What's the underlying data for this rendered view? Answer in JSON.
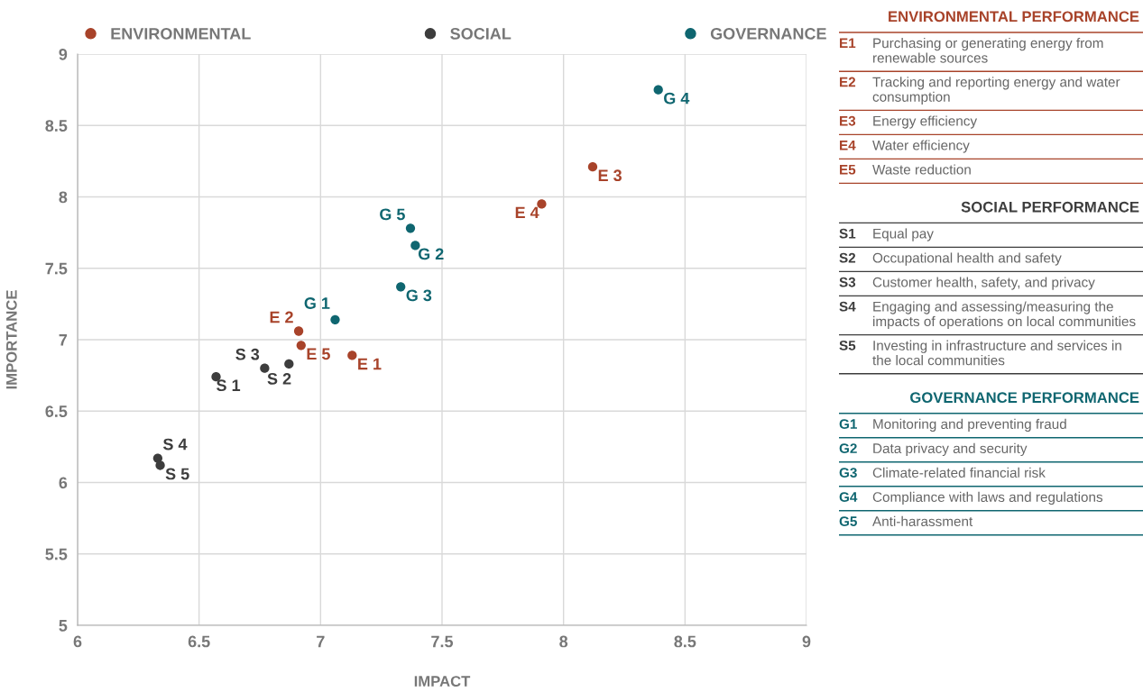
{
  "chart_data": [
    {
      "type": "scatter",
      "xlabel": "IMPACT",
      "ylabel": "IMPORTANCE",
      "xlim": [
        6,
        9
      ],
      "ylim": [
        5,
        9
      ],
      "xticks": [
        6,
        6.5,
        7,
        7.5,
        8,
        8.5,
        9
      ],
      "yticks": [
        5,
        5.5,
        6,
        6.5,
        7,
        7.5,
        8,
        8.5,
        9
      ],
      "grid": true,
      "legend": "top",
      "marker": "circle",
      "series": [
        {
          "name": "ENVIRONMENTAL",
          "color": "#a8432a",
          "x": [
            7.13,
            6.91,
            8.12,
            7.91,
            6.92
          ],
          "values": [
            6.89,
            7.06,
            8.21,
            7.95,
            6.96
          ]
        },
        {
          "name": "SOCIAL",
          "color": "#3d3d3d",
          "x": [
            6.57,
            6.87,
            6.77,
            6.33,
            6.34
          ],
          "values": [
            6.74,
            6.83,
            6.8,
            6.17,
            6.12
          ]
        },
        {
          "name": "GOVERNANCE",
          "color": "#0f6670",
          "x": [
            7.06,
            7.39,
            7.33,
            8.39,
            7.37
          ],
          "values": [
            7.14,
            7.66,
            7.37,
            8.75,
            7.78
          ]
        }
      ],
      "annotations": [
        {
          "text": "E 1",
          "x": 7.13,
          "y": 6.89
        },
        {
          "text": "E 2",
          "x": 6.91,
          "y": 7.06
        },
        {
          "text": "E 3",
          "x": 8.12,
          "y": 8.21
        },
        {
          "text": "E 4",
          "x": 7.91,
          "y": 7.95
        },
        {
          "text": "E 5",
          "x": 6.92,
          "y": 6.96
        },
        {
          "text": "S 1",
          "x": 6.57,
          "y": 6.74
        },
        {
          "text": "S 2",
          "x": 6.87,
          "y": 6.83
        },
        {
          "text": "S 3",
          "x": 6.77,
          "y": 6.8
        },
        {
          "text": "S 4",
          "x": 6.33,
          "y": 6.17
        },
        {
          "text": "S 5",
          "x": 6.34,
          "y": 6.12
        },
        {
          "text": "G 1",
          "x": 7.06,
          "y": 7.14
        },
        {
          "text": "G 2",
          "x": 7.39,
          "y": 7.66
        },
        {
          "text": "G 3",
          "x": 7.33,
          "y": 7.37
        },
        {
          "text": "G 4",
          "x": 8.39,
          "y": 8.75
        },
        {
          "text": "G 5",
          "x": 7.37,
          "y": 7.78
        }
      ]
    },
    {
      "type": "other",
      "title": "ENVIRONMENTAL PERFORMANCE",
      "color": "#a8432a",
      "categories": [
        "E1",
        "E2",
        "E3",
        "E4",
        "E5"
      ],
      "annotations": [
        "Purchasing or generating energy from renewable sources",
        "Tracking and reporting energy and water consumption",
        "Energy efficiency",
        "Water efficiency",
        "Waste reduction"
      ]
    },
    {
      "type": "other",
      "title": "SOCIAL PERFORMANCE",
      "color": "#3d3d3d",
      "categories": [
        "S1",
        "S2",
        "S3",
        "S4",
        "S5"
      ],
      "annotations": [
        "Equal pay",
        "Occupational health and safety",
        "Customer health, safety, and privacy",
        "Engaging and assessing/measuring the impacts of operations on local communities",
        "Investing in infrastructure and services in the local communities"
      ]
    },
    {
      "type": "other",
      "title": "GOVERNANCE PERFORMANCE",
      "color": "#0f6670",
      "categories": [
        "G1",
        "G2",
        "G3",
        "G4",
        "G5"
      ],
      "annotations": [
        "Monitoring and preventing fraud",
        "Data privacy and security",
        "Climate-related financial risk",
        "Compliance with laws and regulations",
        "Anti-harassment"
      ]
    }
  ]
}
